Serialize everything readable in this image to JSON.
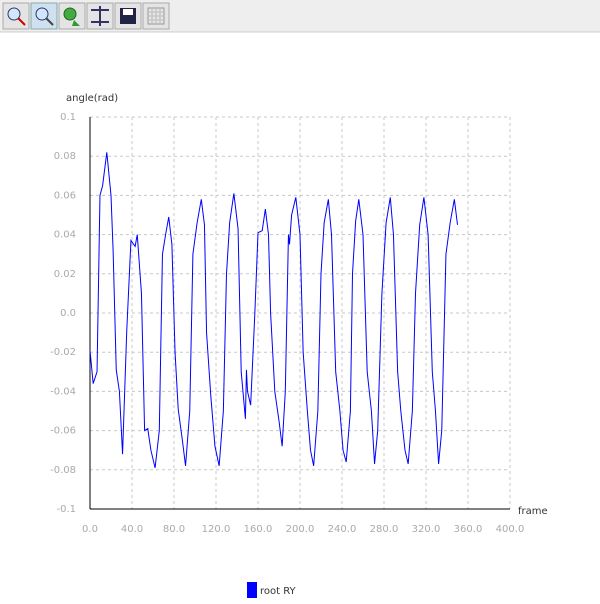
{
  "chart_data": {
    "type": "line",
    "xlabel": "frame",
    "ylabel": "angle(rad)",
    "x": [
      0,
      3,
      6.7,
      9.5,
      12,
      16,
      20,
      22,
      25,
      28,
      31,
      35,
      39,
      43,
      45,
      49,
      52,
      55,
      58,
      62,
      66,
      69,
      72,
      75,
      78,
      81,
      84,
      88,
      91,
      95,
      98,
      102,
      106,
      109,
      111,
      115,
      119,
      123,
      127,
      130,
      133,
      137,
      141,
      144,
      148,
      149,
      150,
      153,
      157,
      160,
      164,
      167,
      170,
      172,
      176,
      180,
      183,
      186,
      189,
      190,
      192,
      196,
      200,
      203,
      207,
      210,
      213,
      217,
      220,
      223,
      227,
      230,
      234,
      238,
      241,
      244,
      248,
      250,
      253,
      256,
      260,
      264,
      268,
      271,
      274,
      278,
      282,
      286,
      289,
      293,
      296,
      300,
      303,
      307,
      310,
      314,
      318,
      322,
      326,
      329,
      332,
      335,
      339,
      343,
      347,
      350
    ],
    "series": [
      {
        "name": "root RY",
        "color": "#0000ff",
        "values": [
          -0.019,
          -0.036,
          -0.03,
          0.06,
          0.065,
          0.082,
          0.06,
          0.032,
          -0.029,
          -0.04,
          -0.072,
          -0.009,
          0.037,
          0.034,
          0.04,
          0.01,
          -0.06,
          -0.059,
          -0.07,
          -0.079,
          -0.06,
          0.03,
          0.04,
          0.049,
          0.035,
          -0.02,
          -0.049,
          -0.065,
          -0.078,
          -0.05,
          0.03,
          0.046,
          0.058,
          0.045,
          -0.01,
          -0.042,
          -0.068,
          -0.078,
          -0.05,
          0.02,
          0.046,
          0.061,
          0.043,
          -0.03,
          -0.054,
          -0.029,
          -0.04,
          -0.047,
          0.0,
          0.041,
          0.042,
          0.053,
          0.04,
          0.0,
          -0.04,
          -0.055,
          -0.068,
          -0.04,
          0.04,
          0.035,
          0.05,
          0.059,
          0.04,
          -0.02,
          -0.05,
          -0.07,
          -0.078,
          -0.05,
          0.02,
          0.046,
          0.058,
          0.04,
          -0.03,
          -0.05,
          -0.07,
          -0.076,
          -0.05,
          0.02,
          0.047,
          0.058,
          0.04,
          -0.03,
          -0.05,
          -0.077,
          -0.06,
          0.01,
          0.046,
          0.059,
          0.04,
          -0.03,
          -0.05,
          -0.07,
          -0.077,
          -0.05,
          0.01,
          0.045,
          0.059,
          0.04,
          -0.03,
          -0.05,
          -0.077,
          -0.06,
          0.03,
          0.046,
          0.058,
          0.045
        ]
      }
    ],
    "xlim": [
      0,
      400
    ],
    "xticks": [
      {
        "value": 0,
        "label": "0.0"
      },
      {
        "value": 40,
        "label": "40.0"
      },
      {
        "value": 80,
        "label": "80.0"
      },
      {
        "value": 120,
        "label": "120.0"
      },
      {
        "value": 160,
        "label": "160.0"
      },
      {
        "value": 200,
        "label": "200.0"
      },
      {
        "value": 240,
        "label": "240.0"
      },
      {
        "value": 280,
        "label": "280.0"
      },
      {
        "value": 320,
        "label": "320.0"
      },
      {
        "value": 360,
        "label": "360.0"
      },
      {
        "value": 400,
        "label": "400.0"
      }
    ],
    "ylim": [
      -0.1,
      0.1
    ],
    "yticks": [
      0.1,
      0.08,
      0.06,
      0.04,
      0.02,
      {
        "value": 0,
        "label": "0.0"
      },
      -0.02,
      -0.04,
      -0.06,
      -0.08,
      -0.1
    ],
    "grid": true
  }
}
